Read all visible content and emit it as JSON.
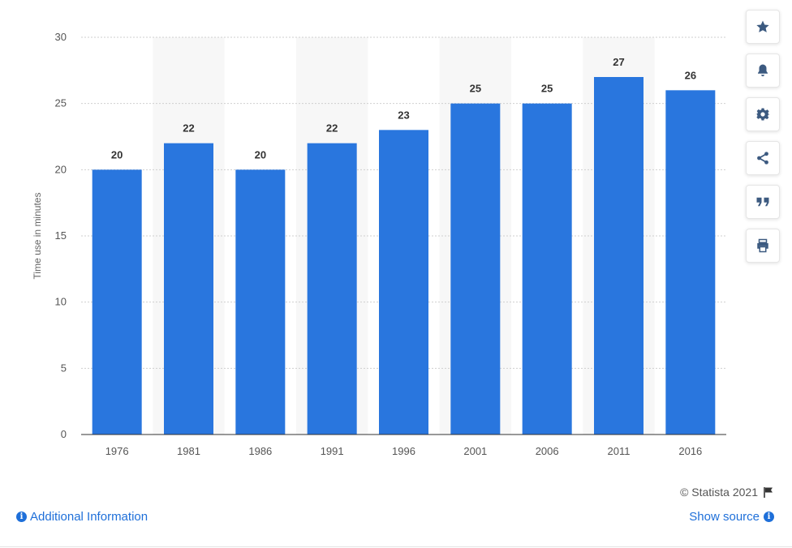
{
  "chart_data": {
    "type": "bar",
    "categories": [
      "1976",
      "1981",
      "1986",
      "1991",
      "1996",
      "2001",
      "2006",
      "2011",
      "2016"
    ],
    "values": [
      20,
      22,
      20,
      22,
      23,
      25,
      25,
      27,
      26
    ],
    "title": "",
    "xlabel": "",
    "ylabel": "Time use in minutes",
    "ylim": [
      0,
      30
    ],
    "yticks": [
      0,
      5,
      10,
      15,
      20,
      25,
      30
    ],
    "grid": true,
    "bar_color": "#2976de",
    "band_color": "#f7f7f7"
  },
  "footer": {
    "copyright": "© Statista 2021",
    "additional_info": "Additional Information",
    "show_source": "Show source"
  },
  "toolbar": {
    "icons": [
      "star-icon",
      "bell-icon",
      "gear-icon",
      "share-icon",
      "quote-icon",
      "print-icon"
    ]
  }
}
